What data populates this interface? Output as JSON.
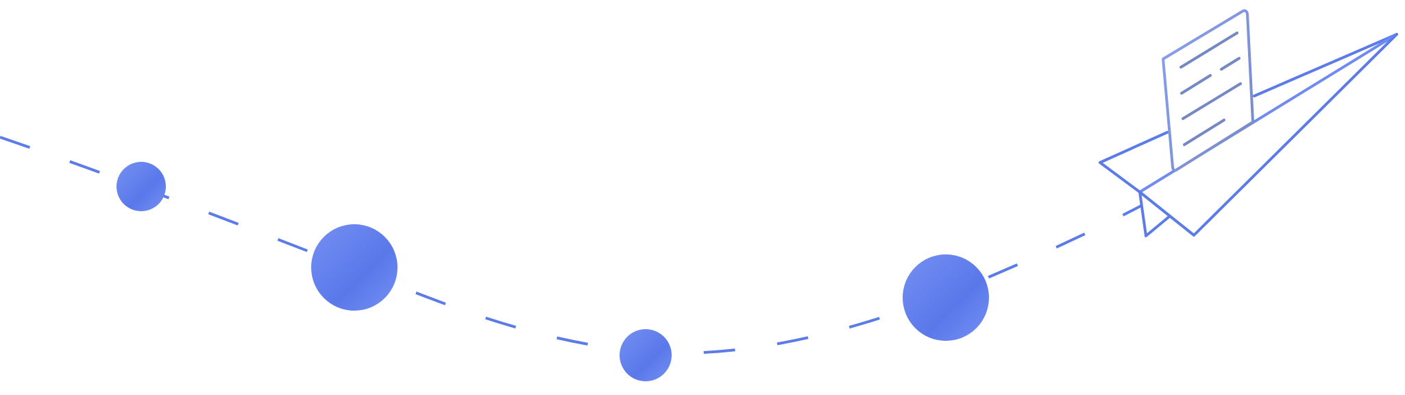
{
  "illustration": {
    "subject": "paper-airplane-with-document",
    "colors": {
      "primary": "#5b7be8",
      "light": "#8aa0f2",
      "dark": "#7688c4",
      "dot_light": "#7590f2",
      "dot_dark": "#5a78ea"
    },
    "dots": 4
  }
}
